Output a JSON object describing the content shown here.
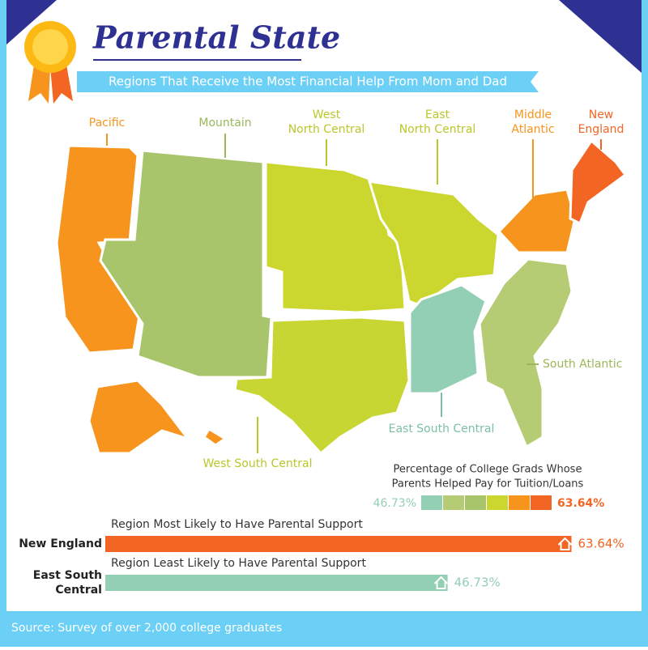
{
  "header": {
    "title": "Parental State",
    "subtitle": "Regions That Receive the Most Financial Help From Mom and Dad"
  },
  "map": {
    "regions": [
      {
        "label_lines": [
          "Pacific"
        ],
        "color": "#f7941d",
        "label_color": "#f7941d"
      },
      {
        "label_lines": [
          "Mountain"
        ],
        "color": "#a9c56b",
        "label_color": "#9ab85a"
      },
      {
        "label_lines": [
          "West",
          "North Central"
        ],
        "color": "#cbd72f",
        "label_color": "#b9c72a"
      },
      {
        "label_lines": [
          "East",
          "North Central"
        ],
        "color": "#cbd72f",
        "label_color": "#b9c72a"
      },
      {
        "label_lines": [
          "Middle",
          "Atlantic"
        ],
        "color": "#f7941d",
        "label_color": "#f7941d"
      },
      {
        "label_lines": [
          "New",
          "England"
        ],
        "color": "#f26522",
        "label_color": "#f26522"
      },
      {
        "label_lines": [
          "South Atlantic"
        ],
        "color": "#b5cc74",
        "label_color": "#9ab85a"
      },
      {
        "label_lines": [
          "East South Central"
        ],
        "color": "#92cfb5",
        "label_color": "#7dbfa3"
      },
      {
        "label_lines": [
          "West South Central"
        ],
        "color": "#c8d634",
        "label_color": "#b9c72a"
      }
    ]
  },
  "legend": {
    "title_lines": [
      "Percentage of College Grads Whose",
      "Parents Helped Pay for Tuition/Loans"
    ],
    "min_label": "46.73%",
    "max_label": "63.64%",
    "colors": [
      "#92cfb5",
      "#b5cc74",
      "#a9c56b",
      "#cbd72f",
      "#f7941d",
      "#f26522"
    ]
  },
  "comparison": {
    "xlim": [
      0,
      70
    ],
    "bars": [
      {
        "caption": "Region Most Likely to Have Parental Support",
        "region_lines": [
          "New England"
        ],
        "value": 63.64,
        "value_label": "63.64%",
        "color": "#f26522"
      },
      {
        "caption": "Region Least Likely to Have Parental Support",
        "region_lines": [
          "East South",
          "Central"
        ],
        "value": 46.73,
        "value_label": "46.73%",
        "color": "#92cfb5"
      }
    ]
  },
  "footer": {
    "source": "Source: Survey of over 2,000 college graduates"
  }
}
